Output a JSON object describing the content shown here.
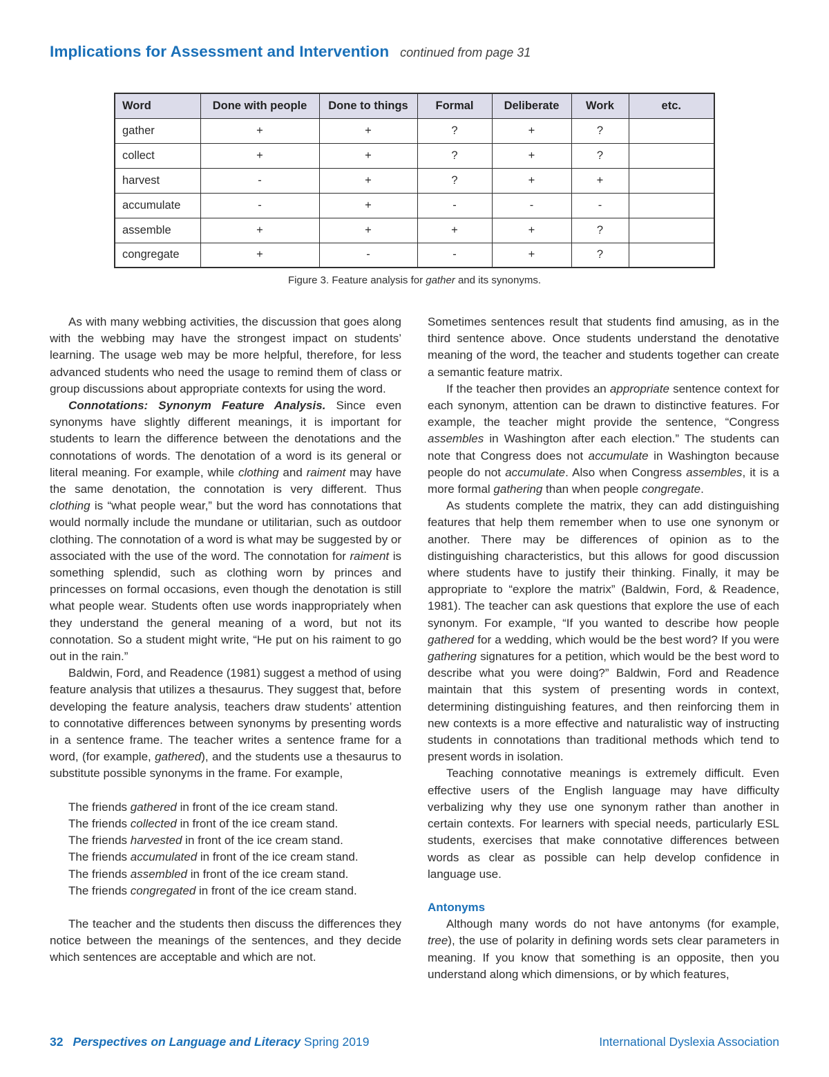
{
  "colors": {
    "accent_blue": "#1a70b8",
    "table_header_bg": "#dcdcea",
    "text": "#2d2d2d"
  },
  "header": {
    "title": "Implications for Assessment and Intervention",
    "continued": "continued from page 31"
  },
  "figure": {
    "caption_segments": [
      {
        "t": "Figure 3. Feature analysis for "
      },
      {
        "t": "gather",
        "s": "i"
      },
      {
        "t": " and its synonyms."
      }
    ],
    "table": {
      "headers": [
        "Word",
        "Done with people",
        "Done to things",
        "Formal",
        "Deliberate",
        "Work",
        "etc."
      ],
      "rows": [
        {
          "word": "gather",
          "values": [
            "+",
            "+",
            "?",
            "+",
            "?",
            ""
          ]
        },
        {
          "word": "collect",
          "values": [
            "+",
            "+",
            "?",
            "+",
            "?",
            ""
          ]
        },
        {
          "word": "harvest",
          "values": [
            "-",
            "+",
            "?",
            "+",
            "+",
            ""
          ]
        },
        {
          "word": "accumulate",
          "values": [
            "-",
            "+",
            "-",
            "-",
            "-",
            ""
          ]
        },
        {
          "word": "assemble",
          "values": [
            "+",
            "+",
            "+",
            "+",
            "?",
            ""
          ]
        },
        {
          "word": "congregate",
          "values": [
            "+",
            "-",
            "-",
            "+",
            "?",
            ""
          ]
        }
      ]
    }
  },
  "left_column": {
    "blocks": [
      {
        "type": "p",
        "indent": true,
        "segments": [
          {
            "t": "As with many webbing activities, the discussion that goes along with the webbing may have the strongest impact on students’ learning. The usage web may be more helpful, therefore, for less advanced students who need the usage to remind them of class or group discussions about appropriate contexts for using the word."
          }
        ]
      },
      {
        "type": "p",
        "indent": true,
        "segments": [
          {
            "t": "Connotations: Synonym Feature Analysis.",
            "s": "bi"
          },
          {
            "t": " Since even synonyms have slightly different meanings, it is important for students to learn the difference between the denotations and the connotations of words. The denotation of a word is its general or literal meaning. For example, while "
          },
          {
            "t": "clothing",
            "s": "i"
          },
          {
            "t": " and "
          },
          {
            "t": "raiment",
            "s": "i"
          },
          {
            "t": " may have the same denotation, the connotation is very different. Thus "
          },
          {
            "t": "clothing",
            "s": "i"
          },
          {
            "t": " is “what people wear,” but the word has connotations that would normally include the mundane or utilitarian, such as outdoor clothing. The connotation of a word is what may be suggested by or associated with the use of the word. The connotation for "
          },
          {
            "t": "raiment",
            "s": "i"
          },
          {
            "t": " is something splendid, such as clothing worn by princes and princesses on formal occasions, even though the denotation is still what people wear. Students often use words inappropriately when they understand the general meaning of a word, but not its connotation. So a student might write, “He put on his raiment to go out in the rain.”"
          }
        ]
      },
      {
        "type": "p",
        "indent": true,
        "segments": [
          {
            "t": "Baldwin, Ford, and Readence (1981) suggest a method of using feature analysis that utilizes a thesaurus. They suggest that, before developing the feature analysis, teachers draw students’ attention to connotative differences between synonyms by presenting words in a sentence frame. The teacher writes a sentence frame for a word, (for example, "
          },
          {
            "t": "gathered",
            "s": "i"
          },
          {
            "t": "), and the students use a thesaurus to substitute possible synonyms in the frame. For example,"
          }
        ]
      },
      {
        "type": "examples",
        "lines": [
          [
            {
              "t": "The friends "
            },
            {
              "t": "gathered",
              "s": "i"
            },
            {
              "t": " in front of the ice cream stand."
            }
          ],
          [
            {
              "t": "The friends "
            },
            {
              "t": "collected",
              "s": "i"
            },
            {
              "t": " in front of the ice cream stand."
            }
          ],
          [
            {
              "t": "The friends "
            },
            {
              "t": "harvested",
              "s": "i"
            },
            {
              "t": " in front of the ice cream stand."
            }
          ],
          [
            {
              "t": "The friends "
            },
            {
              "t": "accumulated",
              "s": "i"
            },
            {
              "t": " in front of the ice cream stand."
            }
          ],
          [
            {
              "t": "The friends "
            },
            {
              "t": "assembled",
              "s": "i"
            },
            {
              "t": " in front of the ice cream stand."
            }
          ],
          [
            {
              "t": "The friends "
            },
            {
              "t": "congregated",
              "s": "i"
            },
            {
              "t": " in front of the ice cream stand."
            }
          ]
        ]
      },
      {
        "type": "p",
        "indent": true,
        "segments": [
          {
            "t": "The teacher and the students then discuss the differences they notice between the meanings of the sentences, and they decide which sentences are acceptable and which are not."
          }
        ]
      }
    ]
  },
  "right_column": {
    "blocks": [
      {
        "type": "p",
        "indent": false,
        "segments": [
          {
            "t": "Sometimes sentences result that students find amusing, as in the third sentence above. Once students understand the denotative meaning of the word, the teacher and students together can create a semantic feature matrix."
          }
        ]
      },
      {
        "type": "p",
        "indent": true,
        "segments": [
          {
            "t": "If the teacher then provides an "
          },
          {
            "t": "appropriate",
            "s": "i"
          },
          {
            "t": " sentence context for each synonym, attention can be drawn to distinctive features. For example, the teacher might provide the sentence, “Congress "
          },
          {
            "t": "assembles",
            "s": "i"
          },
          {
            "t": " in Washington after each election.” The students can note that Congress does not "
          },
          {
            "t": "accumulate",
            "s": "i"
          },
          {
            "t": " in Washington because people do not "
          },
          {
            "t": "accumulate",
            "s": "i"
          },
          {
            "t": ". Also when Congress "
          },
          {
            "t": "assembles",
            "s": "i"
          },
          {
            "t": ", it is a more formal "
          },
          {
            "t": "gathering",
            "s": "i"
          },
          {
            "t": " than when people "
          },
          {
            "t": "congregate",
            "s": "i"
          },
          {
            "t": "."
          }
        ]
      },
      {
        "type": "p",
        "indent": true,
        "segments": [
          {
            "t": "As students complete the matrix, they can add distinguishing features that help them remember when to use one synonym or another. There may be differences of opinion as to the distinguishing characteristics, but this allows for good discussion where students have to justify their thinking. Finally, it may be appropriate to “explore the matrix” (Baldwin, Ford, & Readence, 1981). The teacher can ask questions that explore the use of each synonym. For example, “If you wanted to describe how people "
          },
          {
            "t": "gathered",
            "s": "i"
          },
          {
            "t": " for a wedding, which would be the best word? If you were "
          },
          {
            "t": "gathering",
            "s": "i"
          },
          {
            "t": " signatures for a petition, which would be the best word to describe what you were doing?” Baldwin, Ford and Readence maintain that this system of presenting words in context, determining distinguishing features, and then reinforcing them in new contexts is a more effective and naturalistic way of instructing students in connotations than traditional methods which tend to present words in isolation."
          }
        ]
      },
      {
        "type": "p",
        "indent": true,
        "segments": [
          {
            "t": "Teaching connotative meanings is extremely difficult. Even effective users of the English language may have difficulty verbalizing why they use one synonym rather than another in certain contexts. For learners with special needs, particularly ESL students, exercises that make connotative differences between words as clear as possible can help develop confidence in language use."
          }
        ]
      },
      {
        "type": "heading",
        "text": "Antonyms"
      },
      {
        "type": "p",
        "indent": true,
        "segments": [
          {
            "t": "Although many words do not have antonyms (for example, "
          },
          {
            "t": "tree",
            "s": "i"
          },
          {
            "t": "), the use of polarity in defining words sets clear parameters in meaning. If you know that something is an opposite, then you understand along which dimensions, or by which features,"
          }
        ]
      }
    ]
  },
  "footer": {
    "page_number": "32",
    "journal": "Perspectives on Language and Literacy",
    "season": "Spring 2019",
    "organization": "International Dyslexia Association"
  }
}
